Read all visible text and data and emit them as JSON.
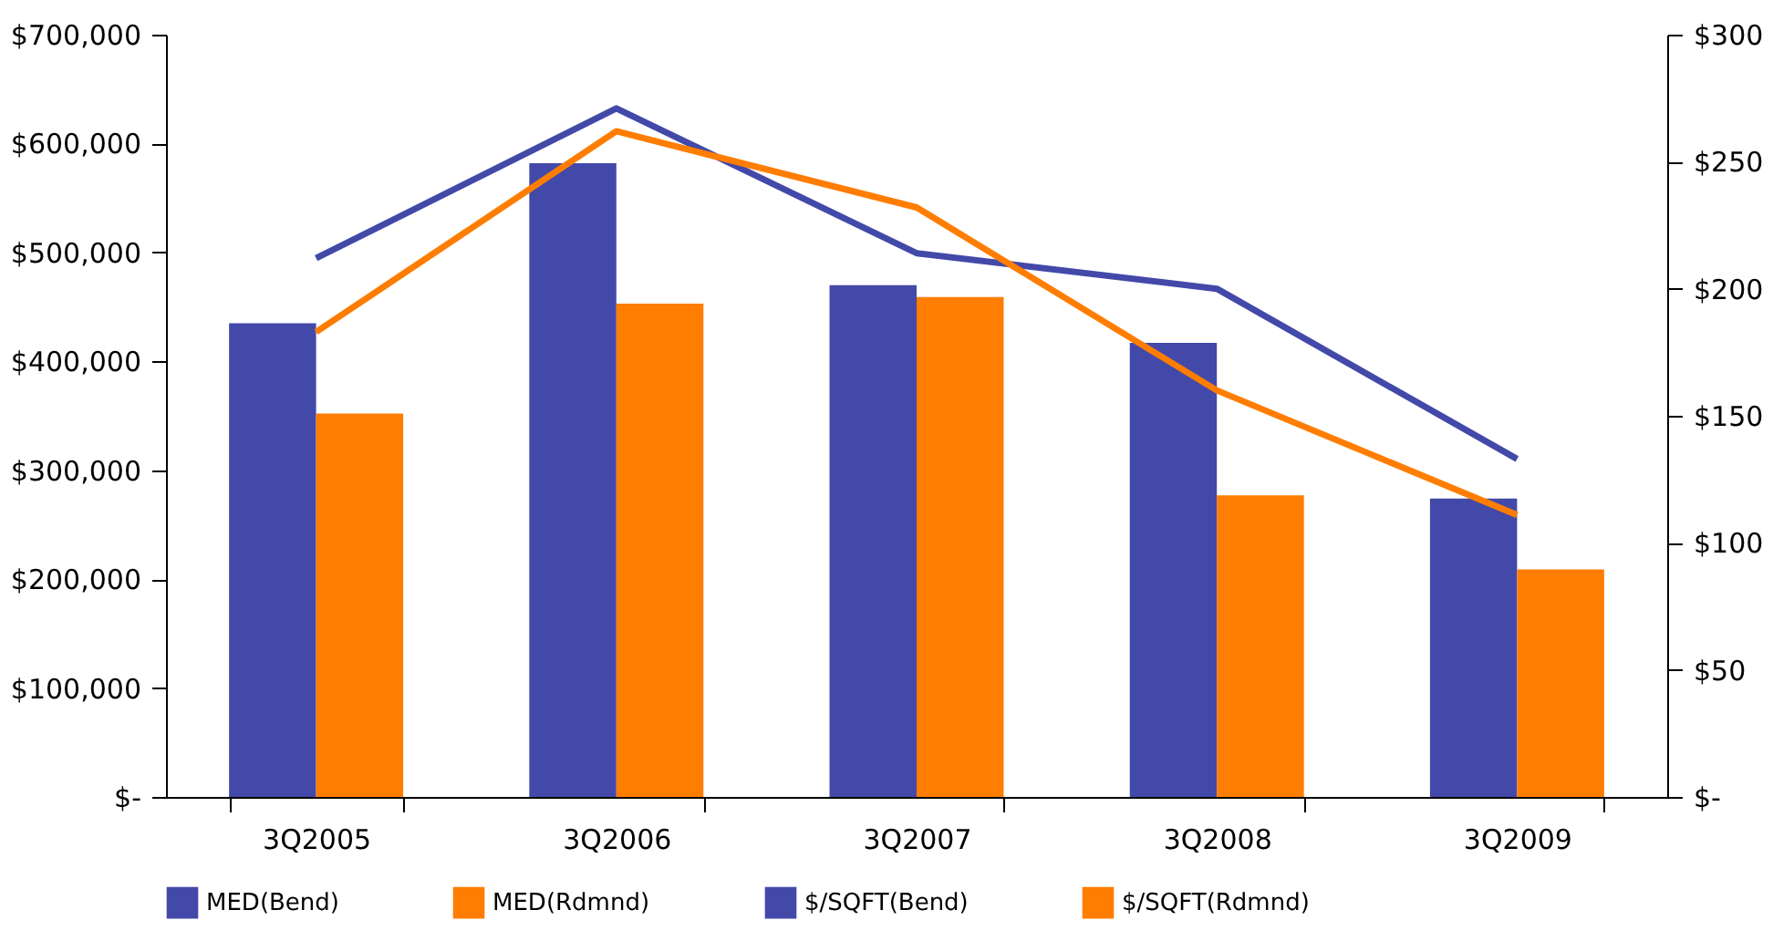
{
  "chart_data": {
    "type": "bar",
    "categories": [
      "3Q2005",
      "3Q2006",
      "3Q2007",
      "3Q2008",
      "3Q2009"
    ],
    "series": [
      {
        "name": "MED(Bend)",
        "color": "#4349a9",
        "values": [
          435000,
          582000,
          470000,
          417000,
          274000
        ]
      },
      {
        "name": "MED(Rdmnd)",
        "color": "#ff7d00",
        "values": [
          352000,
          453000,
          459000,
          277000,
          209000
        ]
      },
      {
        "name": "$/SQFT(Bend)",
        "color": "#4349a9",
        "type": "line",
        "axis": "y2",
        "values": [
          212,
          271,
          214,
          200,
          133
        ]
      },
      {
        "name": "$/SQFT(Rdmnd)",
        "color": "#ff7d00",
        "type": "line",
        "axis": "y2",
        "values": [
          183,
          262,
          232,
          160,
          111
        ]
      }
    ],
    "ylim": [
      0,
      700000
    ],
    "yticks": [
      {
        "value": 0,
        "label": "$-"
      },
      {
        "value": 100000,
        "label": "$100,000"
      },
      {
        "value": 200000,
        "label": "$200,000"
      },
      {
        "value": 300000,
        "label": "$300,000"
      },
      {
        "value": 400000,
        "label": "$400,000"
      },
      {
        "value": 500000,
        "label": "$500,000"
      },
      {
        "value": 600000,
        "label": "$600,000"
      },
      {
        "value": 700000,
        "label": "$700,000"
      }
    ],
    "y2lim": [
      0,
      300
    ],
    "y2ticks": [
      {
        "value": 0,
        "label": "$-"
      },
      {
        "value": 50,
        "label": "$50"
      },
      {
        "value": 100,
        "label": "$100"
      },
      {
        "value": 150,
        "label": "$150"
      },
      {
        "value": 200,
        "label": "$200"
      },
      {
        "value": 250,
        "label": "$250"
      },
      {
        "value": 300,
        "label": "$300"
      }
    ],
    "grid": false,
    "legend": "bottom",
    "marker": "none",
    "line_style": "solid"
  }
}
